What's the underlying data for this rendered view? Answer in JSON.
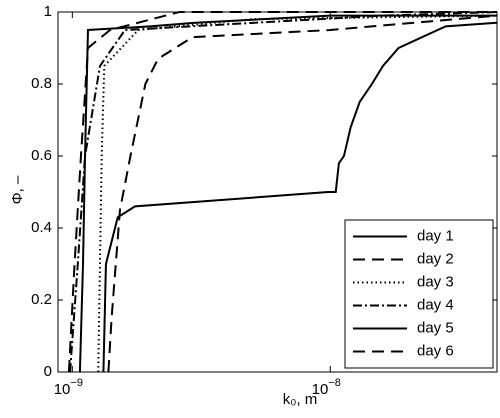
{
  "chart_data": {
    "type": "line",
    "xlabel": "k₀, m",
    "ylabel": "Φ, –",
    "xscale": "log",
    "xlim": [
      8.8e-10,
      4.43e-08
    ],
    "ylim": [
      0,
      1
    ],
    "xticks": [
      {
        "value": 1e-09,
        "label": "10",
        "exponent": "−9"
      },
      {
        "value": 1e-08,
        "label": "10",
        "exponent": "−8"
      }
    ],
    "yticks": [
      0,
      0.2,
      0.4,
      0.6,
      0.8,
      1
    ],
    "legend": "lower right",
    "color": "#000000",
    "series": [
      {
        "name": "day 1",
        "dash": "none",
        "x": [
          1.32e-09,
          1.35e-09,
          1.5e-09,
          1.75e-09,
          9.8e-09,
          1.05e-08,
          1.08e-08,
          1.13e-08,
          1.2e-08,
          1.3e-08,
          1.45e-08,
          1.6e-08,
          1.84e-08,
          2.8e-08,
          4.43e-08
        ],
        "values": [
          0,
          0.3,
          0.43,
          0.46,
          0.5,
          0.5,
          0.58,
          0.6,
          0.68,
          0.75,
          0.8,
          0.85,
          0.9,
          0.96,
          0.97
        ]
      },
      {
        "name": "day 2",
        "dash": "12 7",
        "x": [
          1.38e-09,
          1.42e-09,
          1.53e-09,
          1.68e-09,
          1.92e-09,
          2.15e-09,
          2.92e-09,
          1e-08,
          4.43e-08
        ],
        "values": [
          0,
          0.15,
          0.45,
          0.6,
          0.8,
          0.87,
          0.93,
          0.95,
          0.99
        ]
      },
      {
        "name": "day 3",
        "dash": "1.5 3",
        "x": [
          1.26e-09,
          1.28e-09,
          1.3e-09,
          1.33e-09,
          1.8e-09,
          5e-09,
          4.43e-08
        ],
        "values": [
          0,
          0.3,
          0.6,
          0.85,
          0.95,
          0.98,
          0.99
        ]
      },
      {
        "name": "day 4",
        "dash": "9 3 2 3",
        "x": [
          9.8e-10,
          1.05e-09,
          1.12e-09,
          1.28e-09,
          1.6e-09,
          1.6e-08,
          4.43e-08
        ],
        "values": [
          0,
          0.3,
          0.6,
          0.85,
          0.95,
          0.99,
          1
        ]
      },
      {
        "name": "day 5",
        "dash": "none",
        "x": [
          1.07e-09,
          1.1e-09,
          1.12e-09,
          1.15e-09,
          2e-09,
          3e-09,
          1e-08,
          4.43e-08
        ],
        "values": [
          0,
          0.3,
          0.6,
          0.95,
          0.96,
          0.97,
          0.99,
          0.99
        ]
      },
      {
        "name": "day 6",
        "dash": "12 7",
        "x": [
          9.7e-10,
          1.02e-09,
          1.08e-09,
          1.15e-09,
          1.4e-09,
          2.6e-09,
          4.43e-08
        ],
        "values": [
          0,
          0.3,
          0.6,
          0.9,
          0.95,
          1,
          1
        ]
      }
    ]
  }
}
